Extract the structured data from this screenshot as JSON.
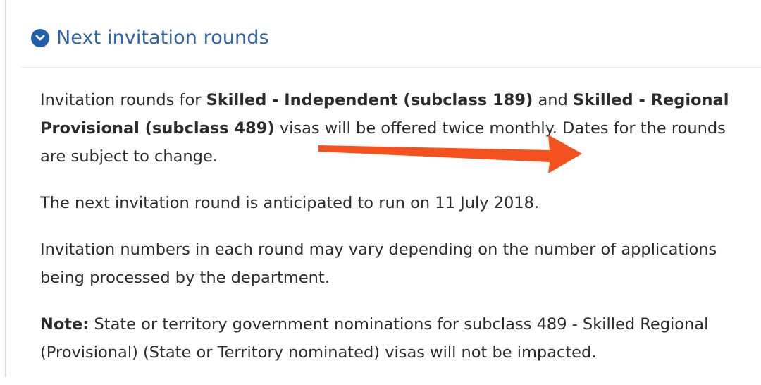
{
  "section": {
    "title": "Next invitation rounds",
    "icon": "chevron-down-circle-icon",
    "paragraphs": {
      "p1": {
        "t1": "Invitation rounds for ",
        "b1": "Skilled - Independent (subclass 189)",
        "t2": " and ",
        "b2": "Skilled - Regional Provisional (subclass 489)",
        "t3": " visas will be offered twice monthly. Dates for the rounds are subject to change."
      },
      "p2": "The next invitation round is anticipated to run on 11 July 2018.",
      "p3": "Invitation numbers in each round may vary depending on the number of applications being processed by the department.",
      "p4": {
        "label": "Note:",
        "text": " State or territory government nominations for subclass 489 - Skilled Regional (Provisional) (State or Territory nominated) visas will not be impacted."
      }
    }
  },
  "annotation": {
    "type": "arrow",
    "color": "#f4511e"
  }
}
